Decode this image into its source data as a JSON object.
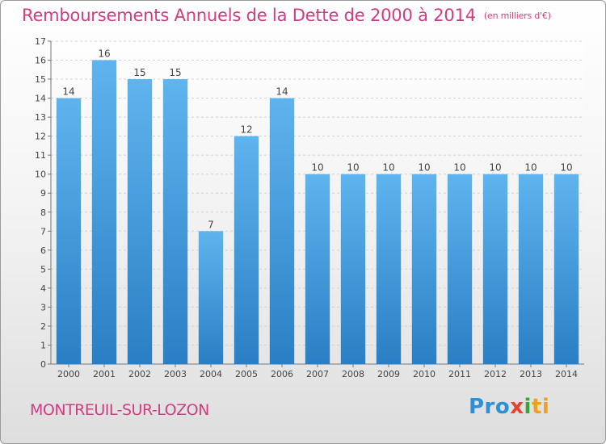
{
  "title": "Remboursements Annuels de la Dette de 2000 à 2014",
  "unit_note": "(en milliers d'€)",
  "town": "MONTREUIL-SUR-LOZON",
  "logo": [
    "Pro",
    "x",
    "i",
    "ti"
  ],
  "colors": {
    "title": "#d03c82",
    "bar_top": "#5fb4ee",
    "bar_bottom": "#2a7fc4"
  },
  "chart_data": {
    "type": "bar",
    "title": "Remboursements Annuels de la Dette de 2000 à 2014",
    "xlabel": "",
    "ylabel": "",
    "categories": [
      "2000",
      "2001",
      "2002",
      "2003",
      "2004",
      "2005",
      "2006",
      "2007",
      "2008",
      "2009",
      "2010",
      "2011",
      "2012",
      "2013",
      "2014"
    ],
    "values": [
      14,
      16,
      15,
      15,
      7,
      12,
      14,
      10,
      10,
      10,
      10,
      10,
      10,
      10,
      10
    ],
    "ylim": [
      0,
      17
    ],
    "yticks": [
      "0",
      "1",
      "2",
      "3",
      "4",
      "5",
      "6",
      "7",
      "8",
      "9",
      "10",
      "11",
      "12",
      "13",
      "14",
      "15",
      "16",
      "17"
    ],
    "grid": true
  }
}
